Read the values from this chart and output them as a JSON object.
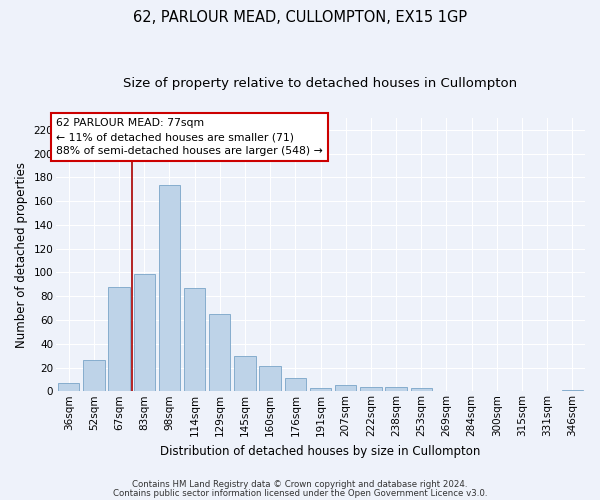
{
  "title": "62, PARLOUR MEAD, CULLOMPTON, EX15 1GP",
  "subtitle": "Size of property relative to detached houses in Cullompton",
  "xlabel": "Distribution of detached houses by size in Cullompton",
  "ylabel": "Number of detached properties",
  "categories": [
    "36sqm",
    "52sqm",
    "67sqm",
    "83sqm",
    "98sqm",
    "114sqm",
    "129sqm",
    "145sqm",
    "160sqm",
    "176sqm",
    "191sqm",
    "207sqm",
    "222sqm",
    "238sqm",
    "253sqm",
    "269sqm",
    "284sqm",
    "300sqm",
    "315sqm",
    "331sqm",
    "346sqm"
  ],
  "values": [
    7,
    26,
    88,
    99,
    174,
    87,
    65,
    30,
    21,
    11,
    3,
    5,
    4,
    4,
    3,
    0,
    0,
    0,
    0,
    0,
    1
  ],
  "bar_color": "#bed3e8",
  "bar_edge_color": "#7aa5c8",
  "vline_x": 2.5,
  "vline_color": "#aa0000",
  "annotation_title": "62 PARLOUR MEAD: 77sqm",
  "annotation_line1": "← 11% of detached houses are smaller (71)",
  "annotation_line2": "88% of semi-detached houses are larger (548) →",
  "annotation_box_color": "#ffffff",
  "annotation_box_edge_color": "#cc0000",
  "ylim": [
    0,
    230
  ],
  "yticks": [
    0,
    20,
    40,
    60,
    80,
    100,
    120,
    140,
    160,
    180,
    200,
    220
  ],
  "footnote1": "Contains HM Land Registry data © Crown copyright and database right 2024.",
  "footnote2": "Contains public sector information licensed under the Open Government Licence v3.0.",
  "bg_color": "#eef2fa",
  "plot_bg_color": "#eef2fa",
  "grid_color": "#ffffff",
  "title_fontsize": 10.5,
  "subtitle_fontsize": 9.5,
  "axis_label_fontsize": 8.5,
  "tick_fontsize": 7.5,
  "footnote_fontsize": 6.2
}
